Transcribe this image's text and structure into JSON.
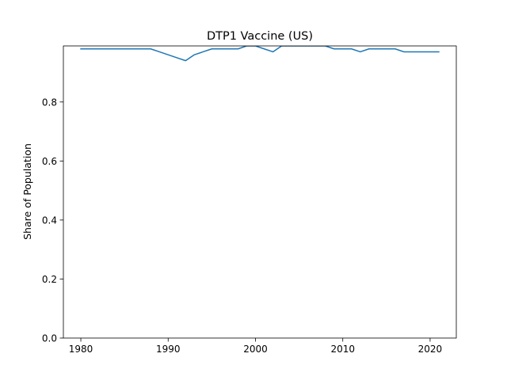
{
  "chart_data": {
    "type": "line",
    "title": "DTP1 Vaccine (US)",
    "xlabel": "",
    "ylabel": "Share of Population",
    "xlim": [
      1978,
      2023
    ],
    "ylim": [
      0,
      0.99
    ],
    "xticks": [
      1980,
      1990,
      2000,
      2010,
      2020
    ],
    "yticks": [
      0.0,
      0.2,
      0.4,
      0.6,
      0.8
    ],
    "grid": false,
    "series": [
      {
        "color": "#1f77b4",
        "x": [
          1980,
          1981,
          1982,
          1983,
          1984,
          1985,
          1986,
          1987,
          1988,
          1989,
          1990,
          1991,
          1992,
          1993,
          1994,
          1995,
          1996,
          1997,
          1998,
          1999,
          2000,
          2001,
          2002,
          2003,
          2004,
          2005,
          2006,
          2007,
          2008,
          2009,
          2010,
          2011,
          2012,
          2013,
          2014,
          2015,
          2016,
          2017,
          2018,
          2019,
          2020,
          2021
        ],
        "y": [
          0.98,
          0.98,
          0.98,
          0.98,
          0.98,
          0.98,
          0.98,
          0.98,
          0.98,
          0.97,
          0.96,
          0.95,
          0.94,
          0.96,
          0.97,
          0.98,
          0.98,
          0.98,
          0.98,
          0.99,
          0.99,
          0.98,
          0.97,
          0.99,
          0.99,
          0.99,
          0.99,
          0.99,
          0.99,
          0.98,
          0.98,
          0.98,
          0.97,
          0.98,
          0.98,
          0.98,
          0.98,
          0.97,
          0.97,
          0.97,
          0.97,
          0.97
        ]
      }
    ]
  }
}
